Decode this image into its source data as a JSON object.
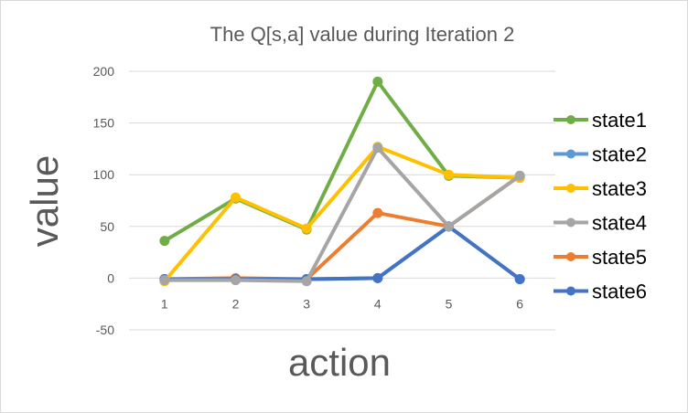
{
  "chart_data": {
    "type": "line",
    "title": "The Q[s,a] value during Iteration 2",
    "xlabel": "action",
    "ylabel": "value",
    "categories": [
      "1",
      "2",
      "3",
      "4",
      "5",
      "6"
    ],
    "y_ticks": [
      "-50",
      "0",
      "50",
      "100",
      "150",
      "200"
    ],
    "ylim": [
      -50,
      200
    ],
    "grid": true,
    "legend_position": "right",
    "series": [
      {
        "name": "state1",
        "color": "#70ad47",
        "values": [
          36,
          77,
          47,
          190,
          99,
          97
        ]
      },
      {
        "name": "state2",
        "color": "#5b9bd5",
        "values": [
          -1,
          -1,
          -1,
          0,
          50,
          -1
        ]
      },
      {
        "name": "state3",
        "color": "#ffc000",
        "values": [
          -3,
          78,
          48,
          127,
          100,
          97
        ]
      },
      {
        "name": "state4",
        "color": "#a5a5a5",
        "values": [
          -2,
          -2,
          -3,
          126,
          50,
          99
        ]
      },
      {
        "name": "state5",
        "color": "#ed7d31",
        "values": [
          -1,
          0,
          -1,
          63,
          50,
          99
        ]
      },
      {
        "name": "state6",
        "color": "#4472c4",
        "values": [
          -1,
          -1,
          -1,
          0,
          50,
          -1
        ]
      }
    ],
    "draw_order": [
      1,
      4,
      5,
      0,
      2,
      3
    ]
  }
}
